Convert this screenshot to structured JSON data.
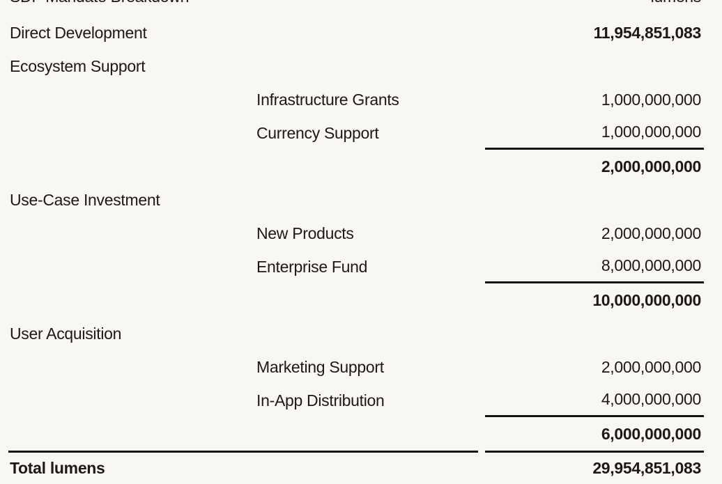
{
  "table": {
    "header": {
      "left": "SDF Mandate Breakdown",
      "right": "lumens"
    },
    "rows": [
      {
        "category": "Direct Development",
        "sub": "",
        "amount": "11,954,851,083"
      },
      {
        "category": "Ecosystem Support",
        "sub": "",
        "amount": ""
      },
      {
        "category": "",
        "sub": "Infrastructure Grants",
        "amount": "1,000,000,000"
      },
      {
        "category": "",
        "sub": "Currency Support",
        "amount": "1,000,000,000"
      },
      {
        "category": "",
        "sub": "",
        "amount": "2,000,000,000"
      },
      {
        "category": "Use-Case Investment",
        "sub": "",
        "amount": ""
      },
      {
        "category": "",
        "sub": "New Products",
        "amount": "2,000,000,000"
      },
      {
        "category": "",
        "sub": "Enterprise Fund",
        "amount": "8,000,000,000"
      },
      {
        "category": "",
        "sub": "",
        "amount": "10,000,000,000"
      },
      {
        "category": "User Acquisition",
        "sub": "",
        "amount": ""
      },
      {
        "category": "",
        "sub": "Marketing Support",
        "amount": "2,000,000,000"
      },
      {
        "category": "",
        "sub": "In-App Distribution",
        "amount": "4,000,000,000"
      },
      {
        "category": "",
        "sub": "",
        "amount": "6,000,000,000"
      },
      {
        "category": "Total lumens",
        "sub": "",
        "amount": "29,954,851,083"
      }
    ],
    "colors": {
      "background": "#f9f7f3",
      "text": "#1c1916",
      "rule": "#161412"
    }
  }
}
